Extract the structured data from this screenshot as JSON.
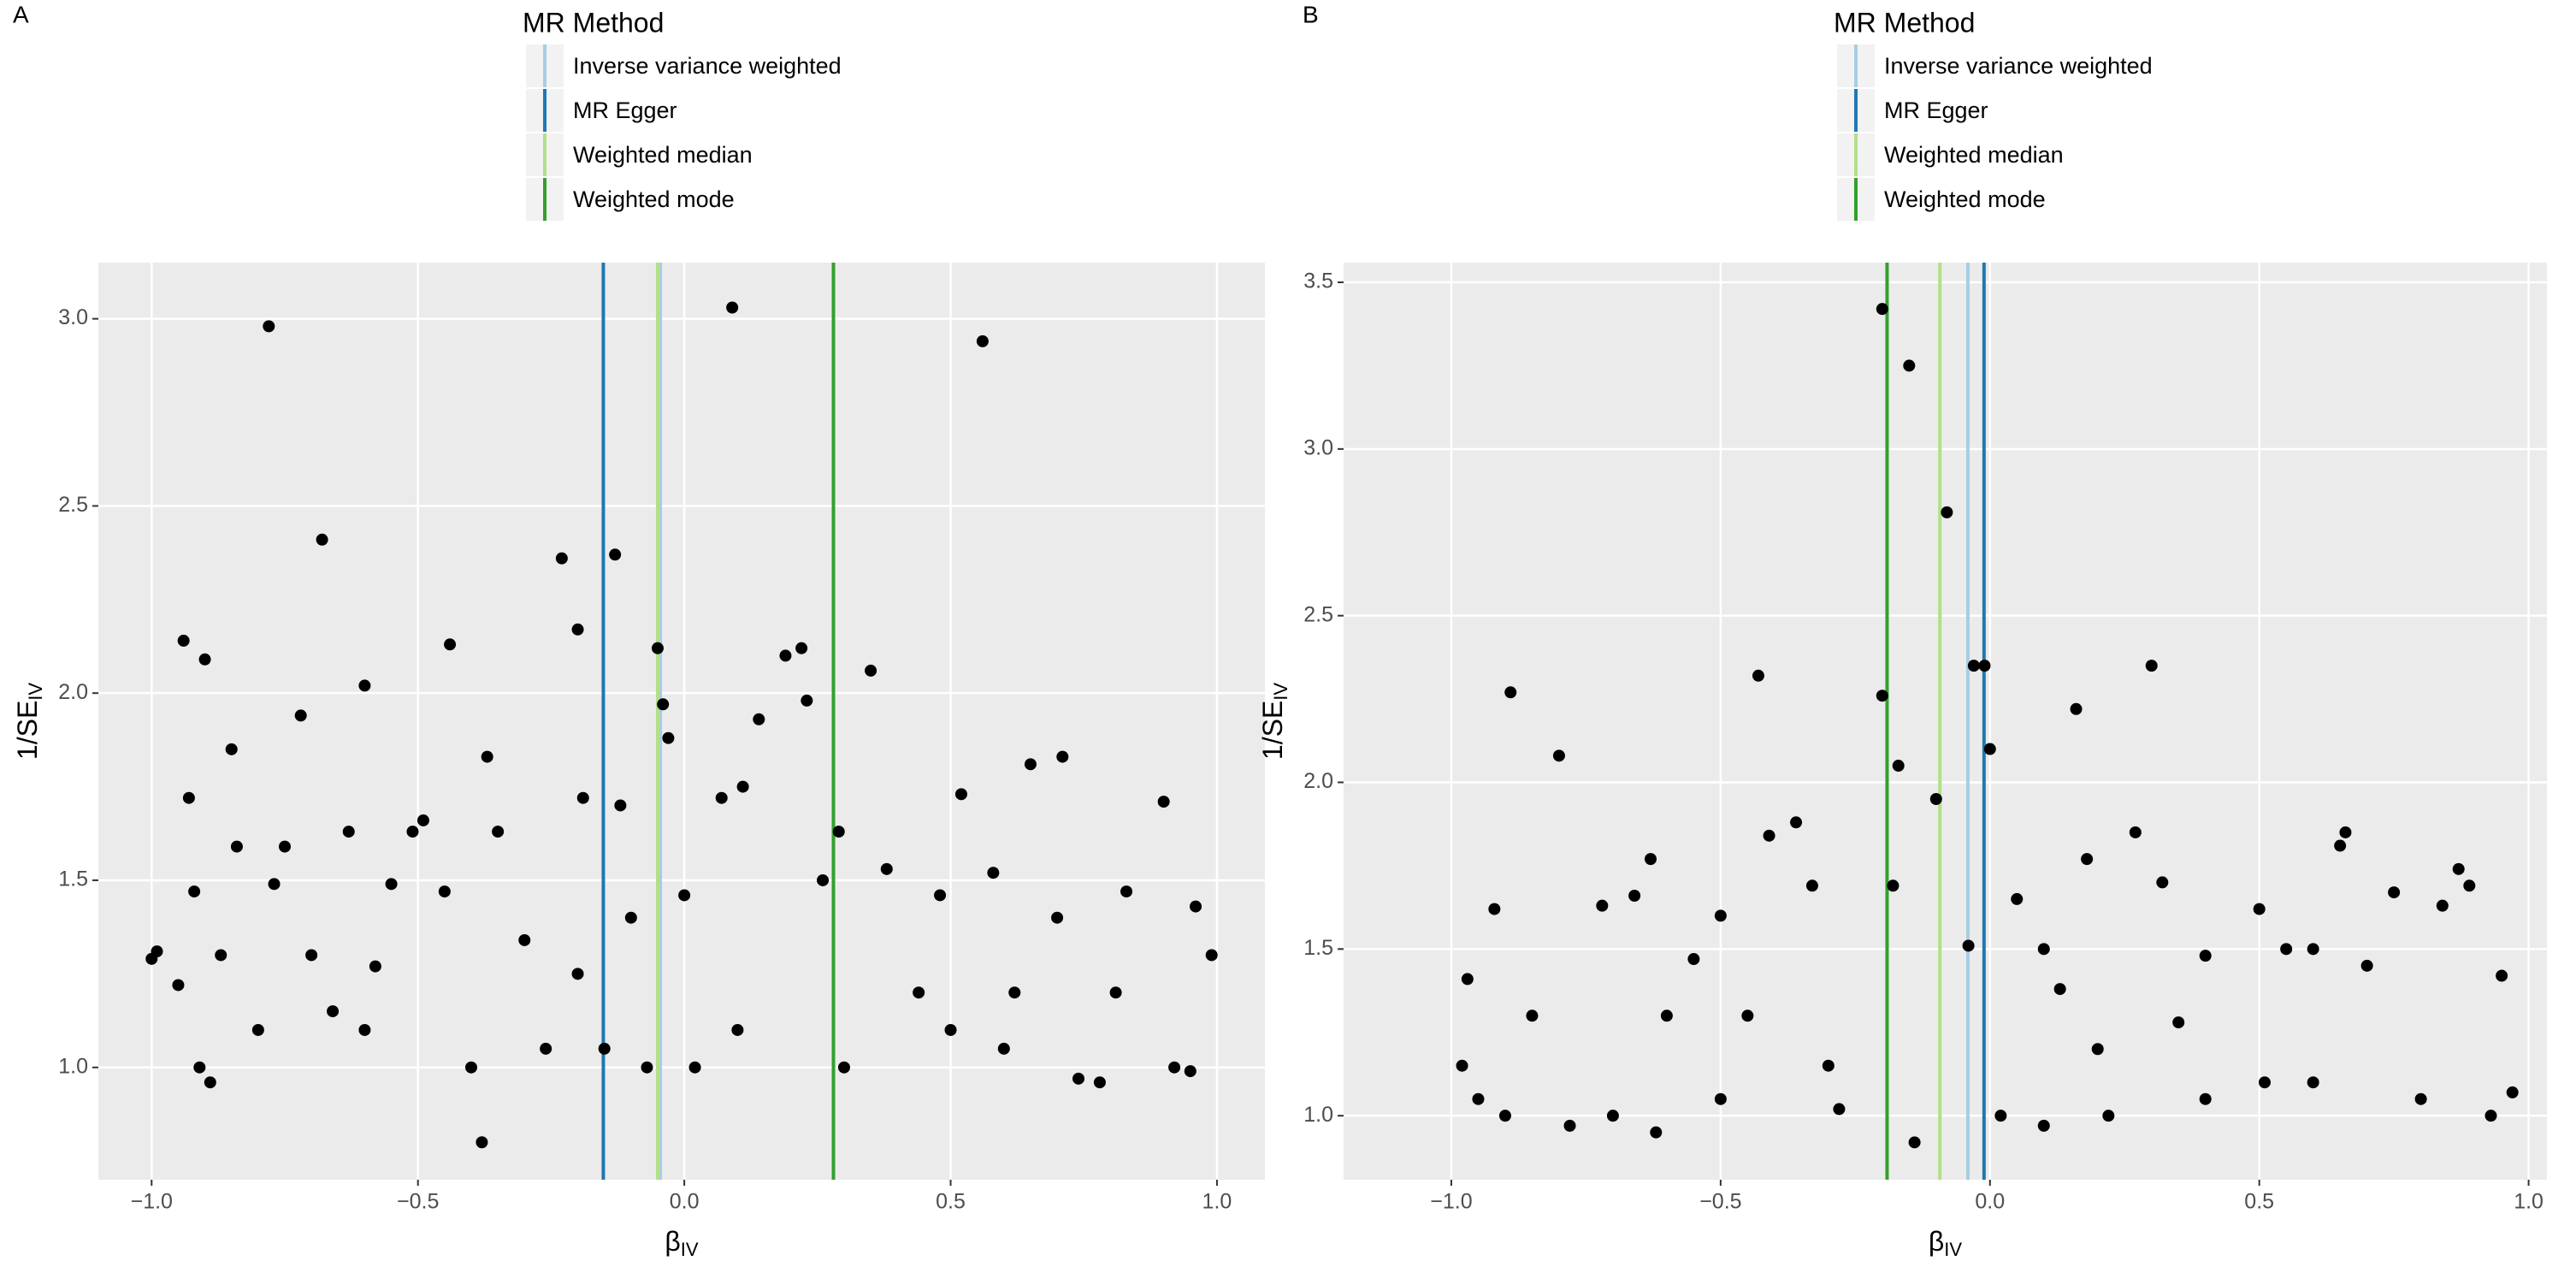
{
  "chart_data": [
    {
      "type": "scatter",
      "panel": "A",
      "legend_title": "MR Method",
      "xlabel": {
        "text": "β",
        "sub": "IV"
      },
      "ylabel": {
        "text": "1/SE",
        "sub": "IV"
      },
      "xlim": [
        -1.1,
        1.09
      ],
      "ylim": [
        0.7,
        3.15
      ],
      "xticks": [
        {
          "value": -1,
          "label": "−1.0"
        },
        {
          "value": -0.5,
          "label": "−0.5"
        },
        {
          "value": 0,
          "label": "0.0"
        },
        {
          "value": 0.5,
          "label": "0.5"
        },
        {
          "value": 1,
          "label": "1.0"
        }
      ],
      "yticks": [
        {
          "value": 1,
          "label": "1.0"
        },
        {
          "value": 1.5,
          "label": "1.5"
        },
        {
          "value": 2,
          "label": "2.0"
        },
        {
          "value": 2.5,
          "label": "2.5"
        },
        {
          "value": 3,
          "label": "3.0"
        }
      ],
      "grid": true,
      "background": "#ebebeb",
      "color": "#000000",
      "vlines": [
        {
          "name": "Inverse variance weighted",
          "color": "#a6cee3",
          "value": -0.045
        },
        {
          "name": "MR Egger",
          "color": "#1f78b4",
          "value": -0.152
        },
        {
          "name": "Weighted median",
          "color": "#b2df8a",
          "value": -0.05
        },
        {
          "name": "Weighted mode",
          "color": "#33a02c",
          "value": 0.28
        }
      ],
      "x": [
        -1.0,
        -0.99,
        -0.95,
        -0.94,
        -0.93,
        -0.92,
        -0.91,
        -0.9,
        -0.89,
        -0.87,
        -0.85,
        -0.84,
        -0.8,
        -0.78,
        -0.77,
        -0.75,
        -0.72,
        -0.7,
        -0.68,
        -0.66,
        -0.63,
        -0.6,
        -0.58,
        -0.55,
        -0.51,
        -0.49,
        -0.45,
        -0.44,
        -0.38,
        -0.37,
        -0.35,
        -0.3,
        -0.26,
        -0.23,
        -0.2,
        -0.19,
        -0.15,
        -0.13,
        -0.12,
        -0.1,
        -0.07,
        -0.05,
        -0.04,
        -0.03,
        0.0,
        0.02,
        0.07,
        0.09,
        0.11,
        0.14,
        0.19,
        0.22,
        0.23,
        0.26,
        0.29,
        0.3,
        0.35,
        0.38,
        0.44,
        0.48,
        0.52,
        0.56,
        0.58,
        0.62,
        0.65,
        0.7,
        0.71,
        0.74,
        0.78,
        0.81,
        0.83,
        0.9,
        0.92,
        0.96,
        0.99,
        0.95,
        -0.4,
        -0.6,
        0.1,
        0.5,
        -0.2,
        0.6
      ],
      "values": [
        1.29,
        1.31,
        1.22,
        2.14,
        1.72,
        1.47,
        1.0,
        2.09,
        0.96,
        1.3,
        1.85,
        1.59,
        1.1,
        2.98,
        1.49,
        1.59,
        1.94,
        1.3,
        2.41,
        1.15,
        1.63,
        2.02,
        1.27,
        1.49,
        1.63,
        1.66,
        1.47,
        2.13,
        0.8,
        1.83,
        1.63,
        1.34,
        1.05,
        2.36,
        2.17,
        1.72,
        1.05,
        2.37,
        1.7,
        1.4,
        1.0,
        2.12,
        1.97,
        1.88,
        1.46,
        1.0,
        1.72,
        3.03,
        1.75,
        1.93,
        2.1,
        2.12,
        1.98,
        1.5,
        1.63,
        1.0,
        2.06,
        1.53,
        1.2,
        1.46,
        1.73,
        2.94,
        1.52,
        1.2,
        1.81,
        1.4,
        1.83,
        0.97,
        0.96,
        1.2,
        1.47,
        1.71,
        1.0,
        1.43,
        1.3,
        0.99,
        1.0,
        1.1,
        1.1,
        1.1,
        1.25,
        1.05
      ]
    },
    {
      "type": "scatter",
      "panel": "B",
      "legend_title": "MR Method",
      "xlabel": {
        "text": "β",
        "sub": "IV"
      },
      "ylabel": {
        "text": "1/SE",
        "sub": "IV"
      },
      "xlim": [
        -1.2,
        1.034
      ],
      "ylim": [
        0.808,
        3.559
      ],
      "xticks": [
        {
          "value": -1,
          "label": "−1.0"
        },
        {
          "value": -0.5,
          "label": "−0.5"
        },
        {
          "value": 0,
          "label": "0.0"
        },
        {
          "value": 0.5,
          "label": "0.5"
        },
        {
          "value": 1,
          "label": "1.0"
        }
      ],
      "yticks": [
        {
          "value": 1,
          "label": "1.0"
        },
        {
          "value": 1.5,
          "label": "1.5"
        },
        {
          "value": 2,
          "label": "2.0"
        },
        {
          "value": 2.5,
          "label": "2.5"
        },
        {
          "value": 3,
          "label": "3.0"
        },
        {
          "value": 3.5,
          "label": "3.5"
        }
      ],
      "grid": true,
      "background": "#ebebeb",
      "color": "#000000",
      "vlines": [
        {
          "name": "Inverse variance weighted",
          "color": "#a6cee3",
          "value": -0.041
        },
        {
          "name": "MR Egger",
          "color": "#1f78b4",
          "value": -0.011
        },
        {
          "name": "Weighted median",
          "color": "#b2df8a",
          "value": -0.093
        },
        {
          "name": "Weighted mode",
          "color": "#33a02c",
          "value": -0.191
        }
      ],
      "x": [
        -0.98,
        -0.97,
        -0.95,
        -0.92,
        -0.89,
        -0.85,
        -0.8,
        -0.78,
        -0.72,
        -0.66,
        -0.63,
        -0.62,
        -0.55,
        -0.5,
        -0.45,
        -0.43,
        -0.41,
        -0.36,
        -0.33,
        -0.28,
        -0.2,
        -0.2,
        -0.18,
        -0.17,
        -0.15,
        -0.14,
        -0.1,
        -0.08,
        -0.04,
        -0.03,
        -0.01,
        0.0,
        0.02,
        0.05,
        0.1,
        0.13,
        0.16,
        0.18,
        0.22,
        0.27,
        0.3,
        0.32,
        0.35,
        0.4,
        0.5,
        0.51,
        0.55,
        0.6,
        0.65,
        0.66,
        0.7,
        0.75,
        0.84,
        0.87,
        0.89,
        0.93,
        0.95,
        0.97,
        -0.6,
        -0.5,
        -0.3,
        0.2,
        0.4,
        0.6,
        0.8,
        -0.7,
        0.1,
        -0.9
      ],
      "values": [
        1.15,
        1.41,
        1.05,
        1.62,
        2.27,
        1.3,
        2.08,
        0.97,
        1.63,
        1.66,
        1.77,
        0.95,
        1.47,
        1.6,
        1.3,
        2.32,
        1.84,
        1.88,
        1.69,
        1.02,
        3.42,
        2.26,
        1.69,
        2.05,
        3.25,
        0.92,
        1.95,
        2.81,
        1.51,
        2.35,
        2.35,
        2.1,
        1.0,
        1.65,
        1.5,
        1.38,
        2.22,
        1.77,
        1.0,
        1.85,
        2.35,
        1.7,
        1.28,
        1.48,
        1.62,
        1.1,
        1.5,
        1.5,
        1.81,
        1.85,
        1.45,
        1.67,
        1.63,
        1.74,
        1.69,
        1.0,
        1.42,
        1.07,
        1.3,
        1.05,
        1.15,
        1.2,
        1.05,
        1.1,
        1.05,
        1.0,
        0.97,
        1.0
      ]
    }
  ]
}
